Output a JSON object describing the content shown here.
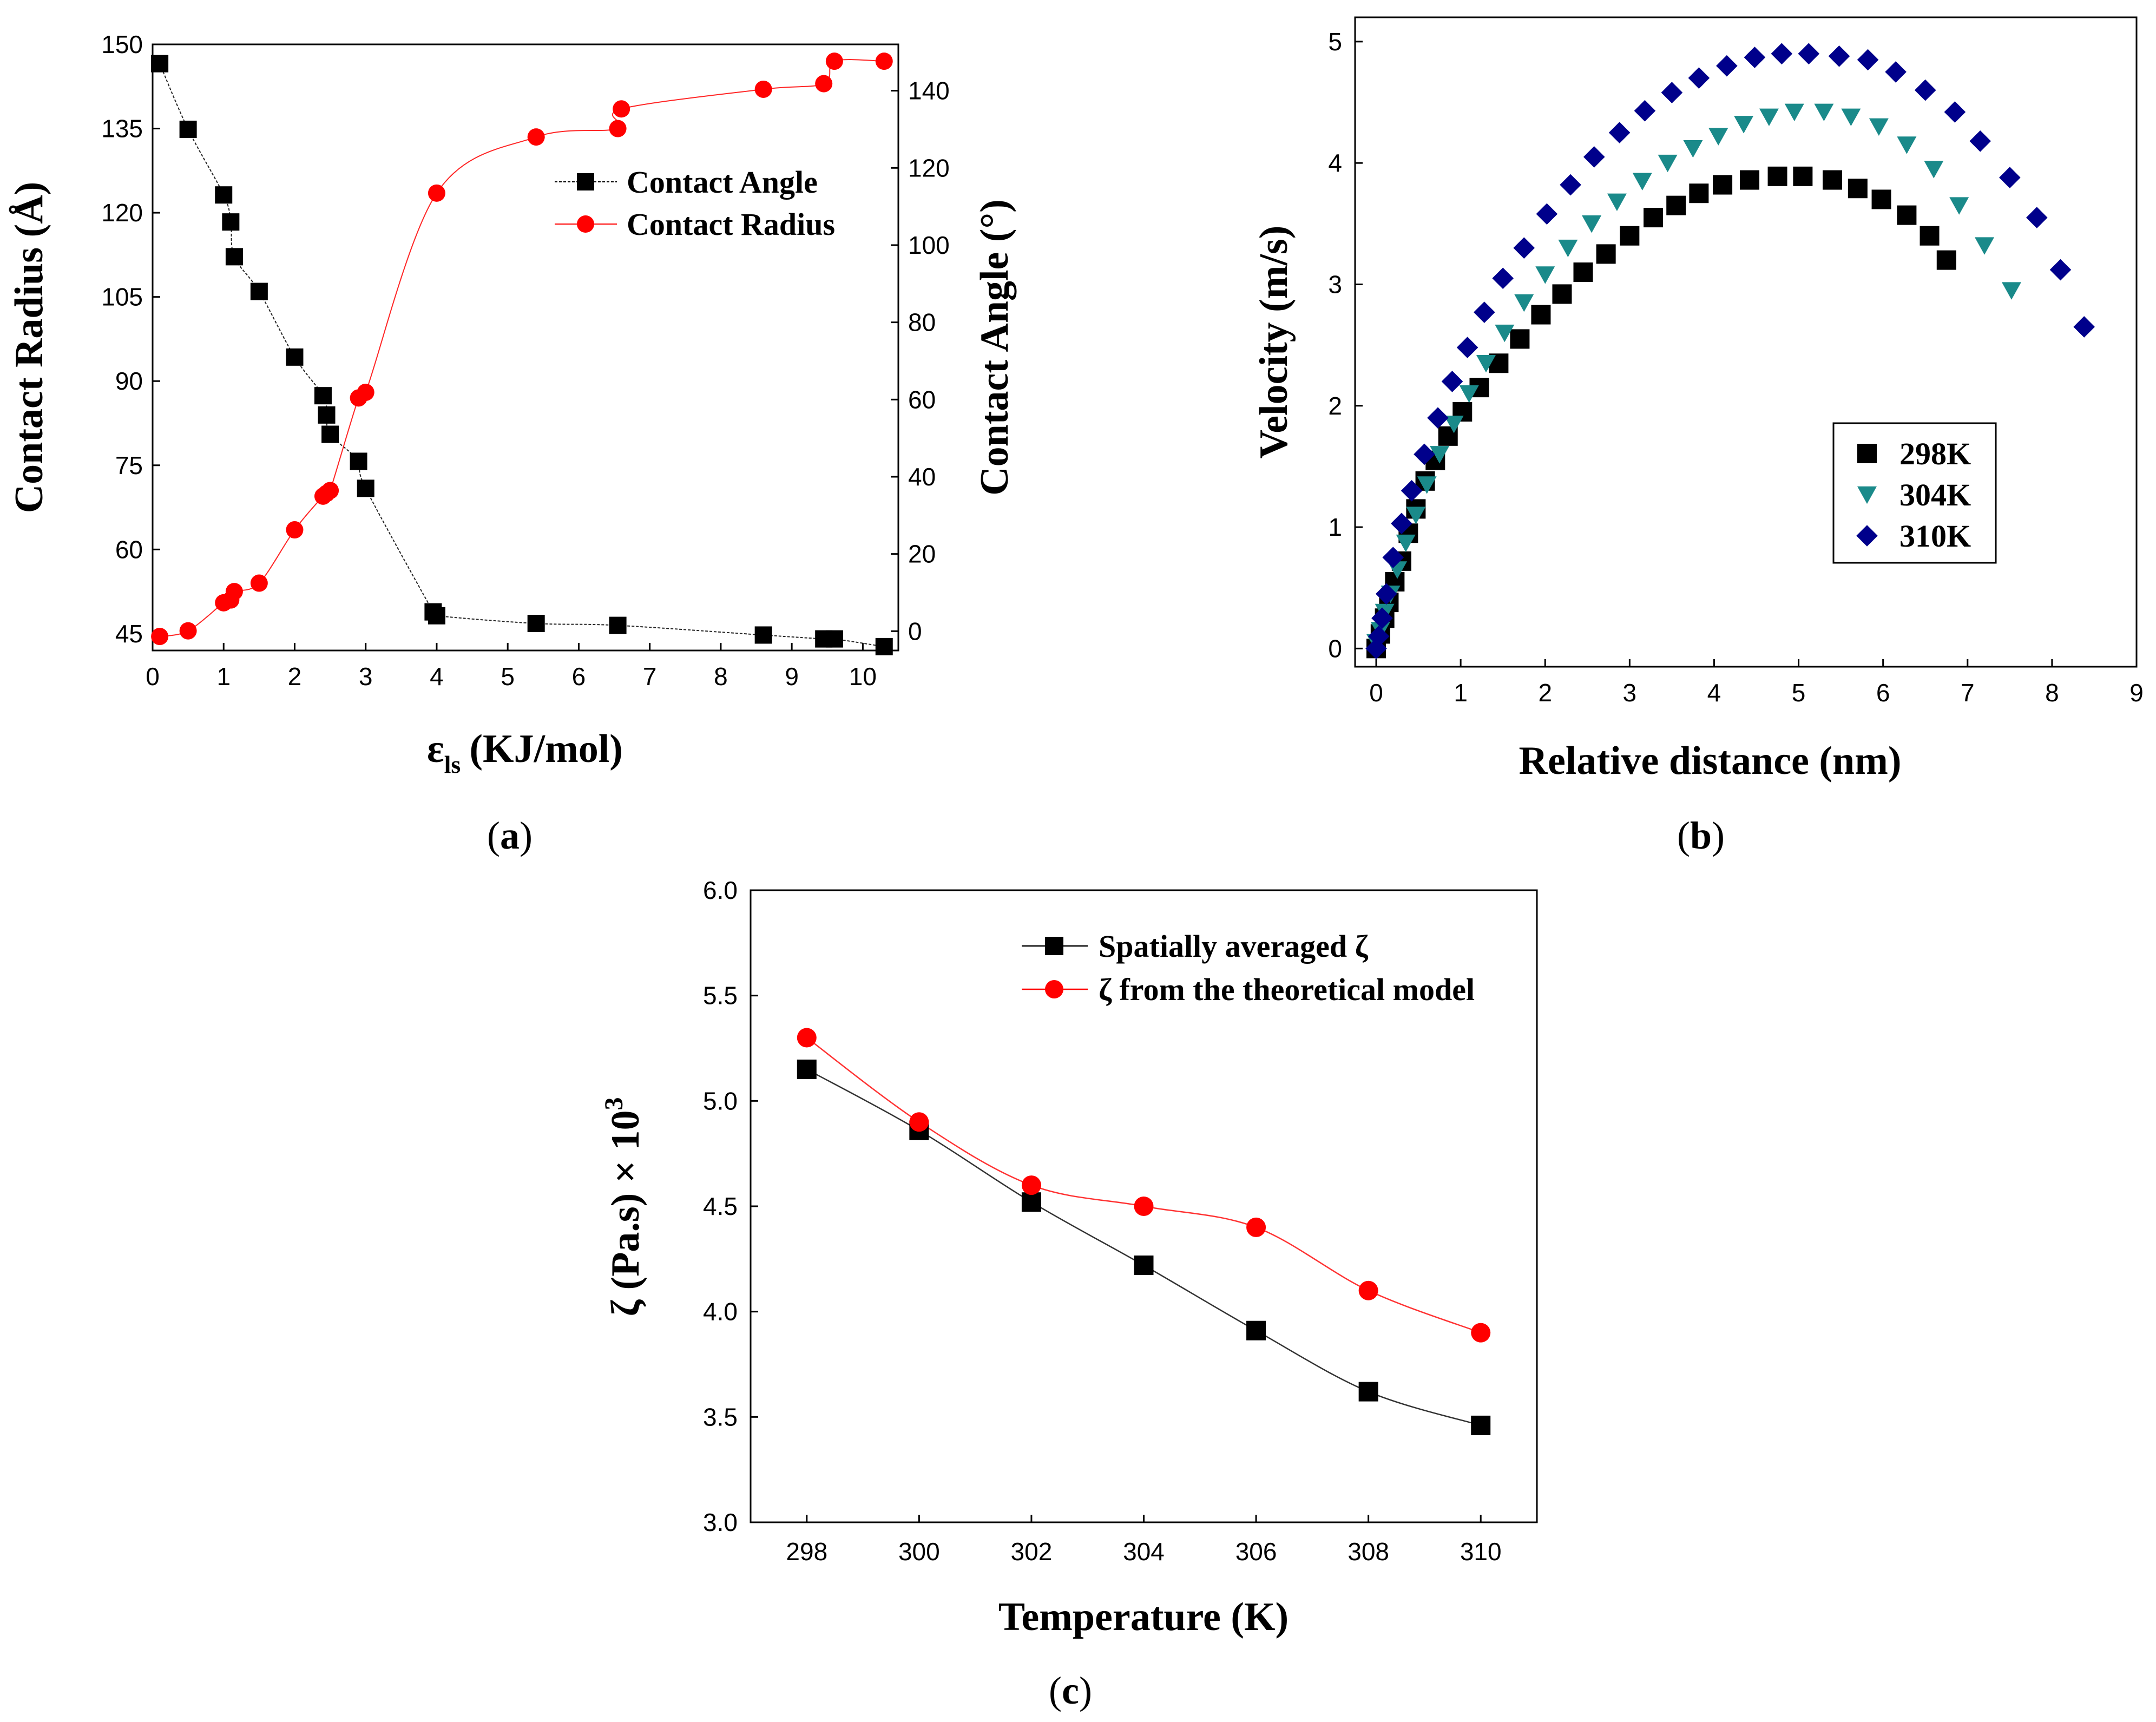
{
  "chart_data": [
    {
      "id": "a",
      "type": "line",
      "caption": "a",
      "xlabel_main": "ε",
      "xlabel_sub": "ls",
      "xlabel_unit": "(KJ/mol)",
      "ylabel_left": "Contact Radius (Å)",
      "ylabel_right": "Contact Angle (°)",
      "xlim": [
        0,
        10.5
      ],
      "ylim_left": [
        42,
        150
      ],
      "ylim_right": [
        -5,
        152
      ],
      "xticks": [
        0,
        1,
        2,
        3,
        4,
        5,
        6,
        7,
        8,
        9,
        10
      ],
      "yticks_left": [
        45,
        60,
        75,
        90,
        105,
        120,
        135,
        150
      ],
      "yticks_right": [
        0,
        20,
        40,
        60,
        80,
        100,
        120,
        140
      ],
      "legend_position": "top-right",
      "series": [
        {
          "name": "Contact Angle",
          "axis": "right",
          "marker": "square",
          "color": "#000000",
          "x": [
            0.1,
            0.5,
            1.0,
            1.1,
            1.15,
            1.5,
            2.0,
            2.4,
            2.45,
            2.5,
            2.9,
            3.0,
            3.95,
            4.0,
            5.4,
            6.55,
            8.6,
            9.45,
            9.6,
            10.3
          ],
          "y": [
            147,
            130,
            113,
            106,
            97,
            88,
            71,
            61,
            56,
            51,
            44,
            37,
            5,
            4,
            2,
            1.5,
            -1,
            -2,
            -2,
            -4
          ]
        },
        {
          "name": "Contact Radius",
          "axis": "left",
          "marker": "circle",
          "color": "#ff0000",
          "x": [
            0.1,
            0.5,
            1.0,
            1.1,
            1.15,
            1.5,
            2.0,
            2.4,
            2.45,
            2.5,
            2.9,
            3.0,
            4.0,
            5.4,
            6.55,
            6.6,
            8.6,
            9.45,
            9.6,
            10.3
          ],
          "y": [
            44.5,
            45.5,
            50.5,
            51,
            52.5,
            54,
            63.5,
            69.5,
            70,
            70.5,
            87,
            88,
            123.5,
            133.5,
            135,
            138.5,
            142,
            143,
            147,
            147
          ]
        }
      ]
    },
    {
      "id": "b",
      "type": "scatter",
      "caption": "b",
      "xlabel": "Relative distance (nm)",
      "ylabel": "Velocity (m/s)",
      "xlim": [
        -0.25,
        9
      ],
      "ylim": [
        -0.15,
        5.2
      ],
      "xticks": [
        0,
        1,
        2,
        3,
        4,
        5,
        6,
        7,
        8,
        9
      ],
      "yticks": [
        0,
        1,
        2,
        3,
        4,
        5
      ],
      "legend_position": "lower-right",
      "series": [
        {
          "name": "298K",
          "marker": "square",
          "color": "#000000",
          "x": [
            0,
            0.05,
            0.1,
            0.15,
            0.22,
            0.3,
            0.38,
            0.47,
            0.58,
            0.7,
            0.85,
            1.02,
            1.22,
            1.45,
            1.7,
            1.95,
            2.2,
            2.45,
            2.72,
            3.0,
            3.28,
            3.55,
            3.82,
            4.1,
            4.42,
            4.75,
            5.05,
            5.4,
            5.7,
            5.98,
            6.28,
            6.55,
            6.75
          ],
          "y": [
            0,
            0.12,
            0.25,
            0.38,
            0.55,
            0.72,
            0.95,
            1.15,
            1.38,
            1.55,
            1.75,
            1.95,
            2.15,
            2.35,
            2.55,
            2.75,
            2.92,
            3.1,
            3.25,
            3.4,
            3.55,
            3.65,
            3.75,
            3.82,
            3.86,
            3.89,
            3.89,
            3.86,
            3.79,
            3.7,
            3.57,
            3.4,
            3.2
          ]
        },
        {
          "name": "304K",
          "marker": "triangle-down",
          "color": "#1a8a8a",
          "x": [
            0,
            0.05,
            0.1,
            0.17,
            0.25,
            0.35,
            0.47,
            0.6,
            0.75,
            0.92,
            1.1,
            1.3,
            1.52,
            1.75,
            2.0,
            2.27,
            2.55,
            2.85,
            3.15,
            3.45,
            3.75,
            4.05,
            4.35,
            4.65,
            4.95,
            5.3,
            5.62,
            5.95,
            6.28,
            6.6,
            6.9,
            7.2,
            7.52
          ],
          "y": [
            0.05,
            0.15,
            0.3,
            0.45,
            0.65,
            0.87,
            1.1,
            1.35,
            1.6,
            1.85,
            2.1,
            2.35,
            2.6,
            2.85,
            3.08,
            3.3,
            3.5,
            3.68,
            3.85,
            4.0,
            4.12,
            4.22,
            4.32,
            4.38,
            4.42,
            4.42,
            4.38,
            4.3,
            4.15,
            3.95,
            3.65,
            3.32,
            2.95
          ]
        },
        {
          "name": "310K",
          "marker": "diamond",
          "color": "#00008b",
          "x": [
            0,
            0.03,
            0.07,
            0.12,
            0.2,
            0.3,
            0.42,
            0.57,
            0.73,
            0.9,
            1.08,
            1.28,
            1.5,
            1.75,
            2.02,
            2.3,
            2.58,
            2.88,
            3.18,
            3.5,
            3.82,
            4.15,
            4.48,
            4.8,
            5.12,
            5.48,
            5.82,
            6.15,
            6.5,
            6.85,
            7.15,
            7.5,
            7.82,
            8.1,
            8.38
          ],
          "y": [
            0,
            0.1,
            0.25,
            0.45,
            0.75,
            1.03,
            1.3,
            1.6,
            1.9,
            2.2,
            2.48,
            2.77,
            3.05,
            3.3,
            3.58,
            3.82,
            4.05,
            4.25,
            4.43,
            4.58,
            4.7,
            4.8,
            4.87,
            4.9,
            4.9,
            4.88,
            4.85,
            4.75,
            4.6,
            4.42,
            4.18,
            3.88,
            3.55,
            3.12,
            2.65
          ]
        }
      ]
    },
    {
      "id": "c",
      "type": "line",
      "caption": "c",
      "xlabel": "Temperature (K)",
      "ylabel_main": "ζ (Pa.s) × 10",
      "ylabel_exp": "3",
      "xlim": [
        297,
        311
      ],
      "ylim": [
        3.0,
        6.0
      ],
      "xticks": [
        298,
        300,
        302,
        304,
        306,
        308,
        310
      ],
      "yticks": [
        "3.0",
        "3.5",
        "4.0",
        "4.5",
        "5.0",
        "5.5",
        "6.0"
      ],
      "legend_position": "top-right",
      "series": [
        {
          "name": "Spatially averaged  ζ",
          "marker": "square",
          "color": "#000000",
          "x": [
            298,
            300,
            302,
            304,
            306,
            308,
            310
          ],
          "y": [
            5.15,
            4.86,
            4.52,
            4.22,
            3.91,
            3.62,
            3.46
          ]
        },
        {
          "name": "ζ  from the theoretical model",
          "marker": "circle",
          "color": "#ff0000",
          "x": [
            298,
            300,
            302,
            304,
            306,
            308,
            310
          ],
          "y": [
            5.3,
            4.9,
            4.6,
            4.5,
            4.4,
            4.1,
            3.9
          ]
        }
      ]
    }
  ]
}
